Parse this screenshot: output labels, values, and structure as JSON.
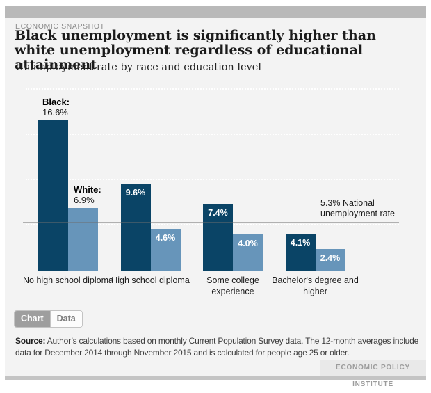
{
  "header": {
    "kicker": "ECONOMIC SNAPSHOT"
  },
  "chart_data": {
    "type": "bar",
    "title": "Black unemployment is significantly higher than white unemployment regardless of educational attainment",
    "subtitle": "Unemployment rate by race and education level",
    "categories": [
      "No high school diploma",
      "High school diploma",
      "Some college experience",
      "Bachelor's degree and higher"
    ],
    "series": [
      {
        "name": "Black",
        "color": "#0a4466",
        "values": [
          16.6,
          9.6,
          7.4,
          4.1
        ]
      },
      {
        "name": "White",
        "color": "#6795ba",
        "values": [
          6.9,
          4.6,
          4.0,
          2.4
        ]
      }
    ],
    "unit": "%",
    "ylim": [
      0,
      20
    ],
    "gridline_step": 5,
    "grid": "horizontal white dotted",
    "legend_position": "callout labels on first group",
    "reference_line": {
      "value": 5.3,
      "label": "5.3% National unemployment rate"
    }
  },
  "tabs": [
    {
      "label": "Chart",
      "active": true
    },
    {
      "label": "Data",
      "active": false
    }
  ],
  "source_note": {
    "label": "Source:",
    "text": " Author’s calculations based on monthly Current Population Survey data. The 12-month averages include data for December 2014 through November 2015 and is calculated for people age 25 or older."
  },
  "branding": {
    "logo_text": "ECONOMIC POLICY INSTITUTE"
  }
}
